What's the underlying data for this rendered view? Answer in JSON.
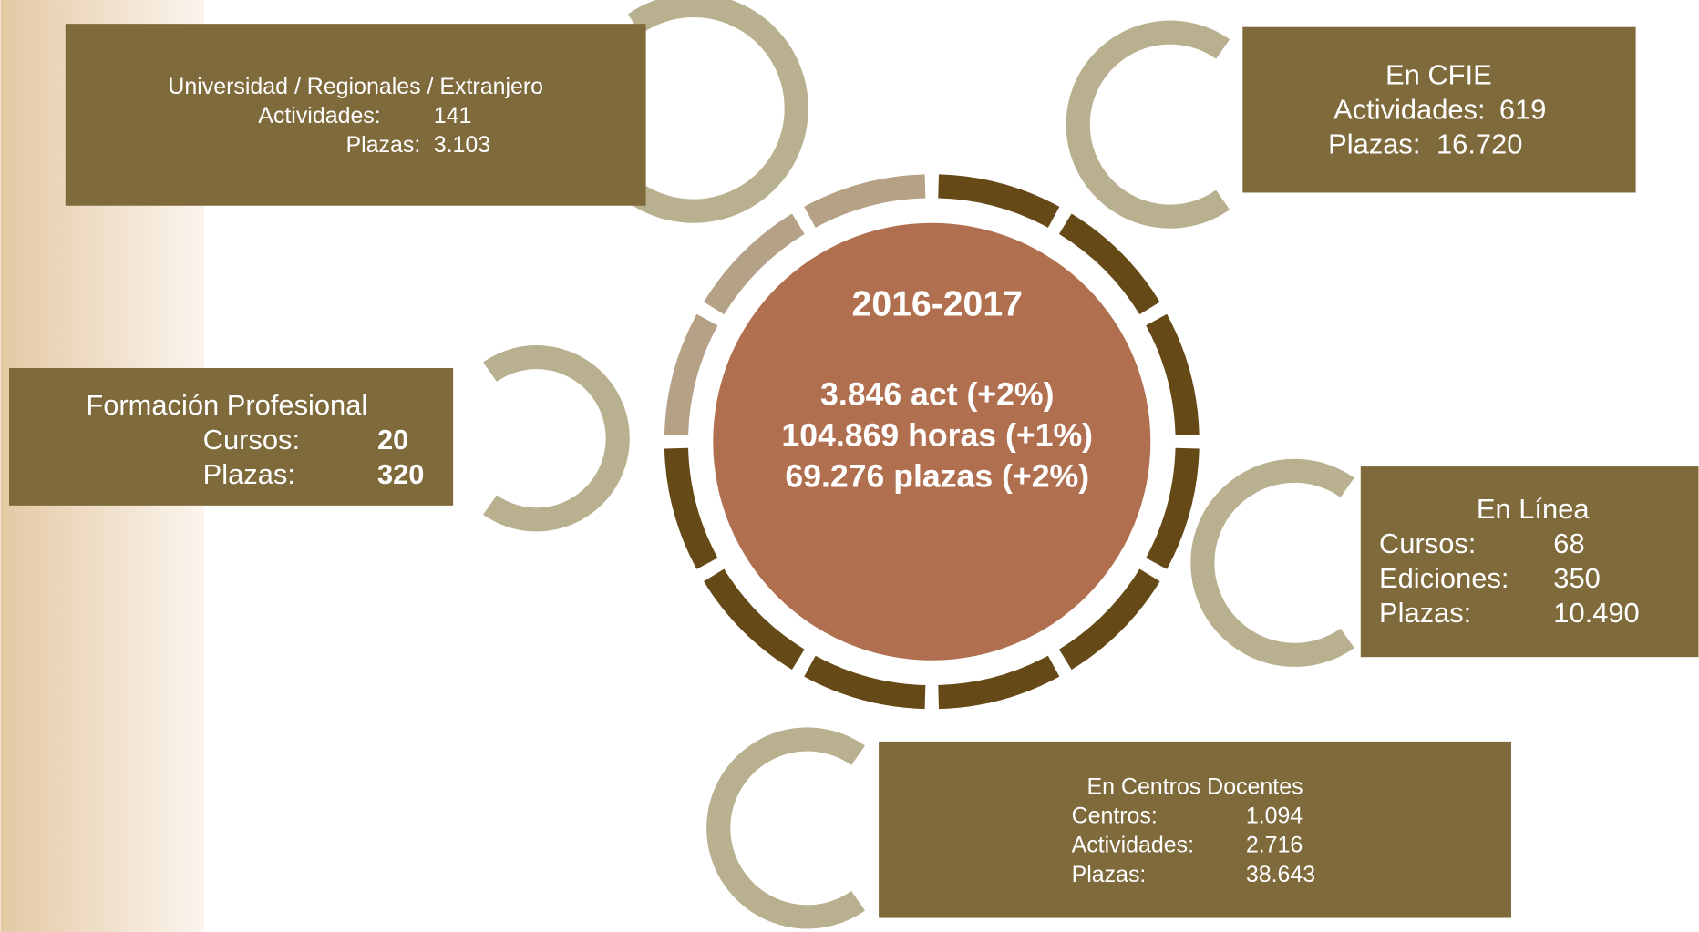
{
  "center": {
    "title": "2016-2017",
    "lines": [
      "3.846 act (+2%)",
      "104.869 horas (+1%)",
      "69.276 plazas (+2%)"
    ]
  },
  "boxes": [
    {
      "title": "Universidad / Regionales / Extranjero",
      "rows": [
        {
          "label": "Actividades:",
          "value": "141"
        },
        {
          "label": "Plazas:",
          "value": "3.103"
        }
      ]
    },
    {
      "title": "En CFIE",
      "rows": [
        {
          "label": "Actividades:",
          "value": "619"
        },
        {
          "label": "Plazas:",
          "value": "16.720"
        }
      ]
    },
    {
      "title": "Formación Profesional",
      "rows": [
        {
          "label": "Cursos:",
          "value": "20"
        },
        {
          "label": "Plazas:",
          "value": "320"
        }
      ]
    },
    {
      "title": "En Línea",
      "rows": [
        {
          "label": "Cursos:",
          "value": "68"
        },
        {
          "label": "Ediciones:",
          "value": "350"
        },
        {
          "label": "Plazas:",
          "value": "10.490"
        }
      ]
    },
    {
      "title": "En Centros Docentes",
      "rows": [
        {
          "label": "Centros:",
          "value": "1.094"
        },
        {
          "label": "Actividades:",
          "value": "2.716"
        },
        {
          "label": "Plazas:",
          "value": "38.643"
        }
      ]
    }
  ]
}
